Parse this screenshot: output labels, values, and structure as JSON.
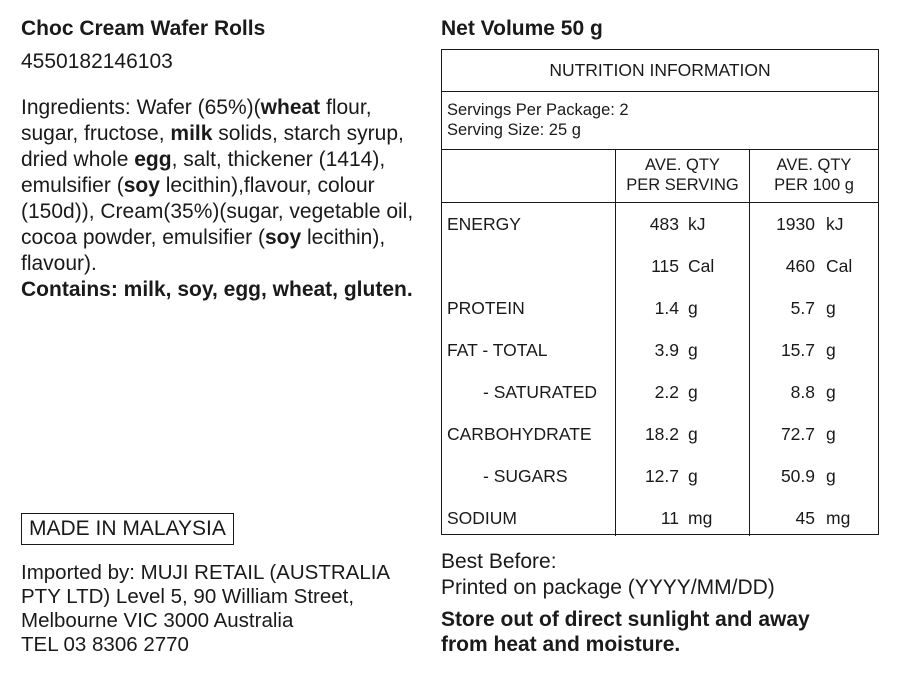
{
  "product": {
    "name": "Choc Cream Wafer Rolls",
    "barcode": "4550182146103",
    "net_volume": "Net Volume 50 g"
  },
  "ingredients": {
    "p1": "Ingredients: Wafer (65%)(",
    "b1": "wheat",
    "p2": " flour, sugar, fructose, ",
    "b2": "milk",
    "p3": " solids, starch syrup, dried whole ",
    "b3": "egg",
    "p4": ", salt, thickener (1414), emulsifier (",
    "b4": "soy",
    "p5": " lecithin),flavour, colour (150d)), Cream(35%)(sugar, vegetable oil, cocoa powder, emulsifier (",
    "b5": "soy",
    "p6": " lecithin), flavour).",
    "contains": "Contains: milk, soy, egg, wheat, gluten."
  },
  "origin": "MADE IN MALAYSIA",
  "importer": {
    "line1": "Imported by: MUJI RETAIL (AUSTRALIA",
    "line2": "PTY LTD) Level 5, 90 William Street,",
    "line3": "Melbourne VIC 3000 Australia",
    "line4": "TEL 03 8306 2770"
  },
  "best_before": {
    "label": "Best Before:",
    "text": "Printed on package (YYYY/MM/DD)"
  },
  "storage": "Store out of direct sunlight and away from heat and moisture.",
  "nutrition": {
    "heading": "NUTRITION INFORMATION",
    "servings_per_package": "Servings Per Package: 2",
    "serving_size": "Serving Size: 25 g",
    "col_serving_1": "AVE. QTY",
    "col_serving_2": "PER SERVING",
    "col_100_1": "AVE. QTY",
    "col_100_2": "PER 100 g",
    "rows": [
      {
        "label": "ENERGY",
        "serving": "483",
        "serving_unit": "kJ",
        "per100": "1930",
        "per100_unit": "kJ"
      },
      {
        "label": "",
        "serving": "115",
        "serving_unit": "Cal",
        "per100": "460",
        "per100_unit": "Cal"
      },
      {
        "label": "PROTEIN",
        "serving": "1.4",
        "serving_unit": "g",
        "per100": "5.7",
        "per100_unit": "g"
      },
      {
        "label": "FAT - TOTAL",
        "serving": "3.9",
        "serving_unit": "g",
        "per100": "15.7",
        "per100_unit": "g"
      },
      {
        "label": "- SATURATED",
        "serving": "2.2",
        "serving_unit": "g",
        "per100": "8.8",
        "per100_unit": "g"
      },
      {
        "label": "CARBOHYDRATE",
        "serving": "18.2",
        "serving_unit": "g",
        "per100": "72.7",
        "per100_unit": "g"
      },
      {
        "label": "- SUGARS",
        "serving": "12.7",
        "serving_unit": "g",
        "per100": "50.9",
        "per100_unit": "g"
      },
      {
        "label": "SODIUM",
        "serving": "11",
        "serving_unit": "mg",
        "per100": "45",
        "per100_unit": "mg"
      }
    ]
  }
}
